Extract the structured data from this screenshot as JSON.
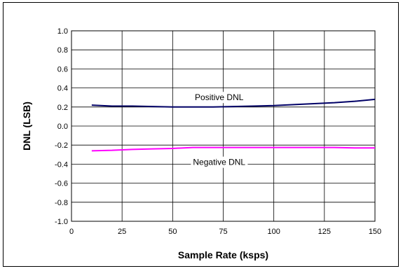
{
  "chart_data": {
    "type": "line",
    "xlabel": "Sample Rate (ksps)",
    "ylabel": "DNL (LSB)",
    "xlim": [
      0,
      150
    ],
    "ylim": [
      -1.0,
      1.0
    ],
    "x_ticks": [
      0,
      25,
      50,
      75,
      100,
      125,
      150
    ],
    "y_ticks": [
      -1.0,
      -0.8,
      -0.6,
      -0.4,
      -0.2,
      0.0,
      0.2,
      0.4,
      0.6,
      0.8,
      1.0
    ],
    "x_tick_labels": [
      "0",
      "25",
      "50",
      "75",
      "100",
      "125",
      "150"
    ],
    "y_tick_labels": [
      "-1.0",
      "-0.8",
      "-0.6",
      "-0.4",
      "-0.2",
      "0.0",
      "0.2",
      "0.4",
      "0.6",
      "0.8",
      "1.0"
    ],
    "grid": true,
    "legend": "none",
    "series": [
      {
        "name": "Positive DNL",
        "color": "#000066",
        "x": [
          10,
          20,
          30,
          40,
          50,
          60,
          70,
          80,
          90,
          100,
          110,
          120,
          130,
          140,
          150
        ],
        "y": [
          0.22,
          0.21,
          0.21,
          0.205,
          0.2,
          0.2,
          0.2,
          0.205,
          0.21,
          0.215,
          0.225,
          0.235,
          0.245,
          0.26,
          0.28
        ]
      },
      {
        "name": "Negative DNL",
        "color": "#ff00ff",
        "x": [
          10,
          20,
          30,
          40,
          50,
          60,
          70,
          80,
          90,
          100,
          110,
          120,
          130,
          140,
          150
        ],
        "y": [
          -0.26,
          -0.255,
          -0.245,
          -0.24,
          -0.235,
          -0.225,
          -0.225,
          -0.225,
          -0.225,
          -0.225,
          -0.225,
          -0.225,
          -0.225,
          -0.23,
          -0.23
        ]
      }
    ]
  }
}
